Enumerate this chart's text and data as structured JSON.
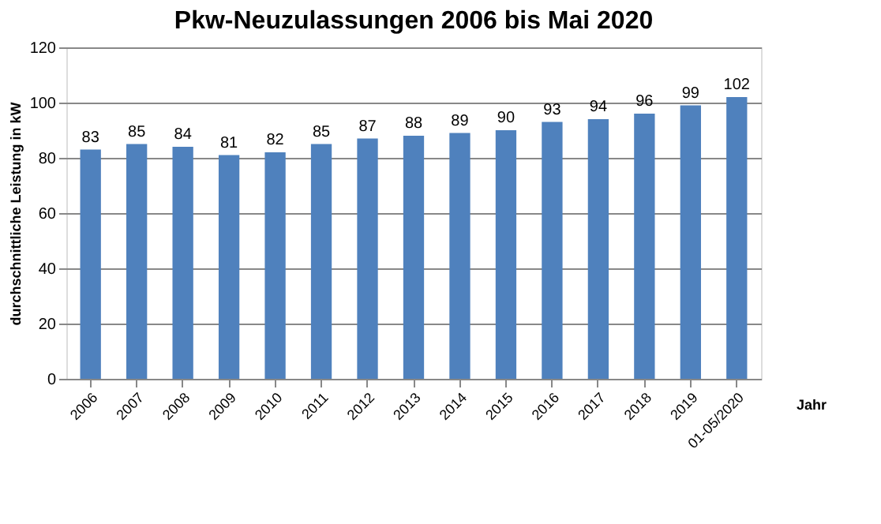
{
  "chart_data": {
    "type": "bar",
    "title": "Pkw-Neuzulassungen 2006 bis Mai 2020",
    "xlabel": "Jahr",
    "ylabel": "durchschnittliche Leistung in kW",
    "categories": [
      "2006",
      "2007",
      "2008",
      "2009",
      "2010",
      "2011",
      "2012",
      "2013",
      "2014",
      "2015",
      "2016",
      "2017",
      "2018",
      "2019",
      "01-05/2020"
    ],
    "values": [
      83,
      85,
      84,
      81,
      82,
      85,
      87,
      88,
      89,
      90,
      93,
      94,
      96,
      99,
      102
    ],
    "color": "#4f81bd",
    "ylim": [
      0,
      120
    ],
    "yticks": [
      0,
      20,
      40,
      60,
      80,
      100,
      120
    ],
    "grid": "y",
    "data_labels": true
  }
}
